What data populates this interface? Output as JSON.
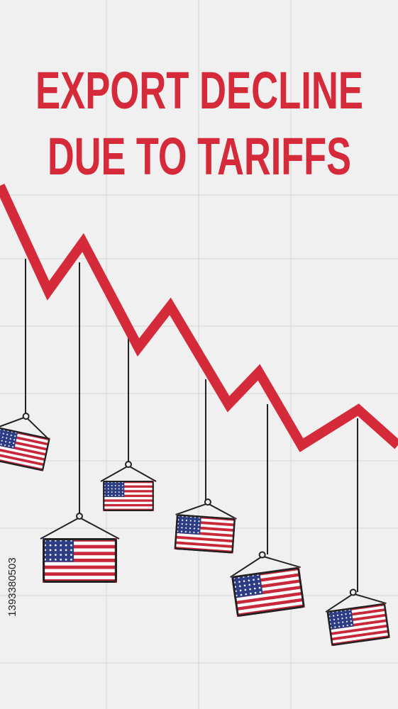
{
  "title": [
    "EXPORT DECLINE",
    "DUE TO TARIFFS"
  ],
  "stock_id": "1393380503"
}
